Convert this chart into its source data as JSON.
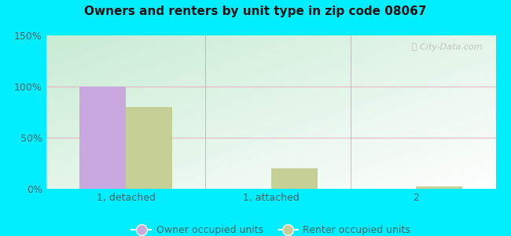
{
  "title": "Owners and renters by unit type in zip code 08067",
  "categories": [
    "1, detached",
    "1, attached",
    "2"
  ],
  "owner_values": [
    100,
    0,
    0
  ],
  "renter_values": [
    80,
    20,
    2
  ],
  "owner_color": "#c9a8e0",
  "renter_color": "#c5cf96",
  "ylim": [
    0,
    150
  ],
  "yticks": [
    0,
    50,
    100,
    150
  ],
  "ytick_labels": [
    "0%",
    "50%",
    "100%",
    "150%"
  ],
  "bar_width": 0.32,
  "outer_bg": "#00eeff",
  "watermark": "City-Data.com",
  "legend_labels": [
    "Owner occupied units",
    "Renter occupied units"
  ],
  "grid_color": "#e8c8d0",
  "title_fontsize": 11
}
